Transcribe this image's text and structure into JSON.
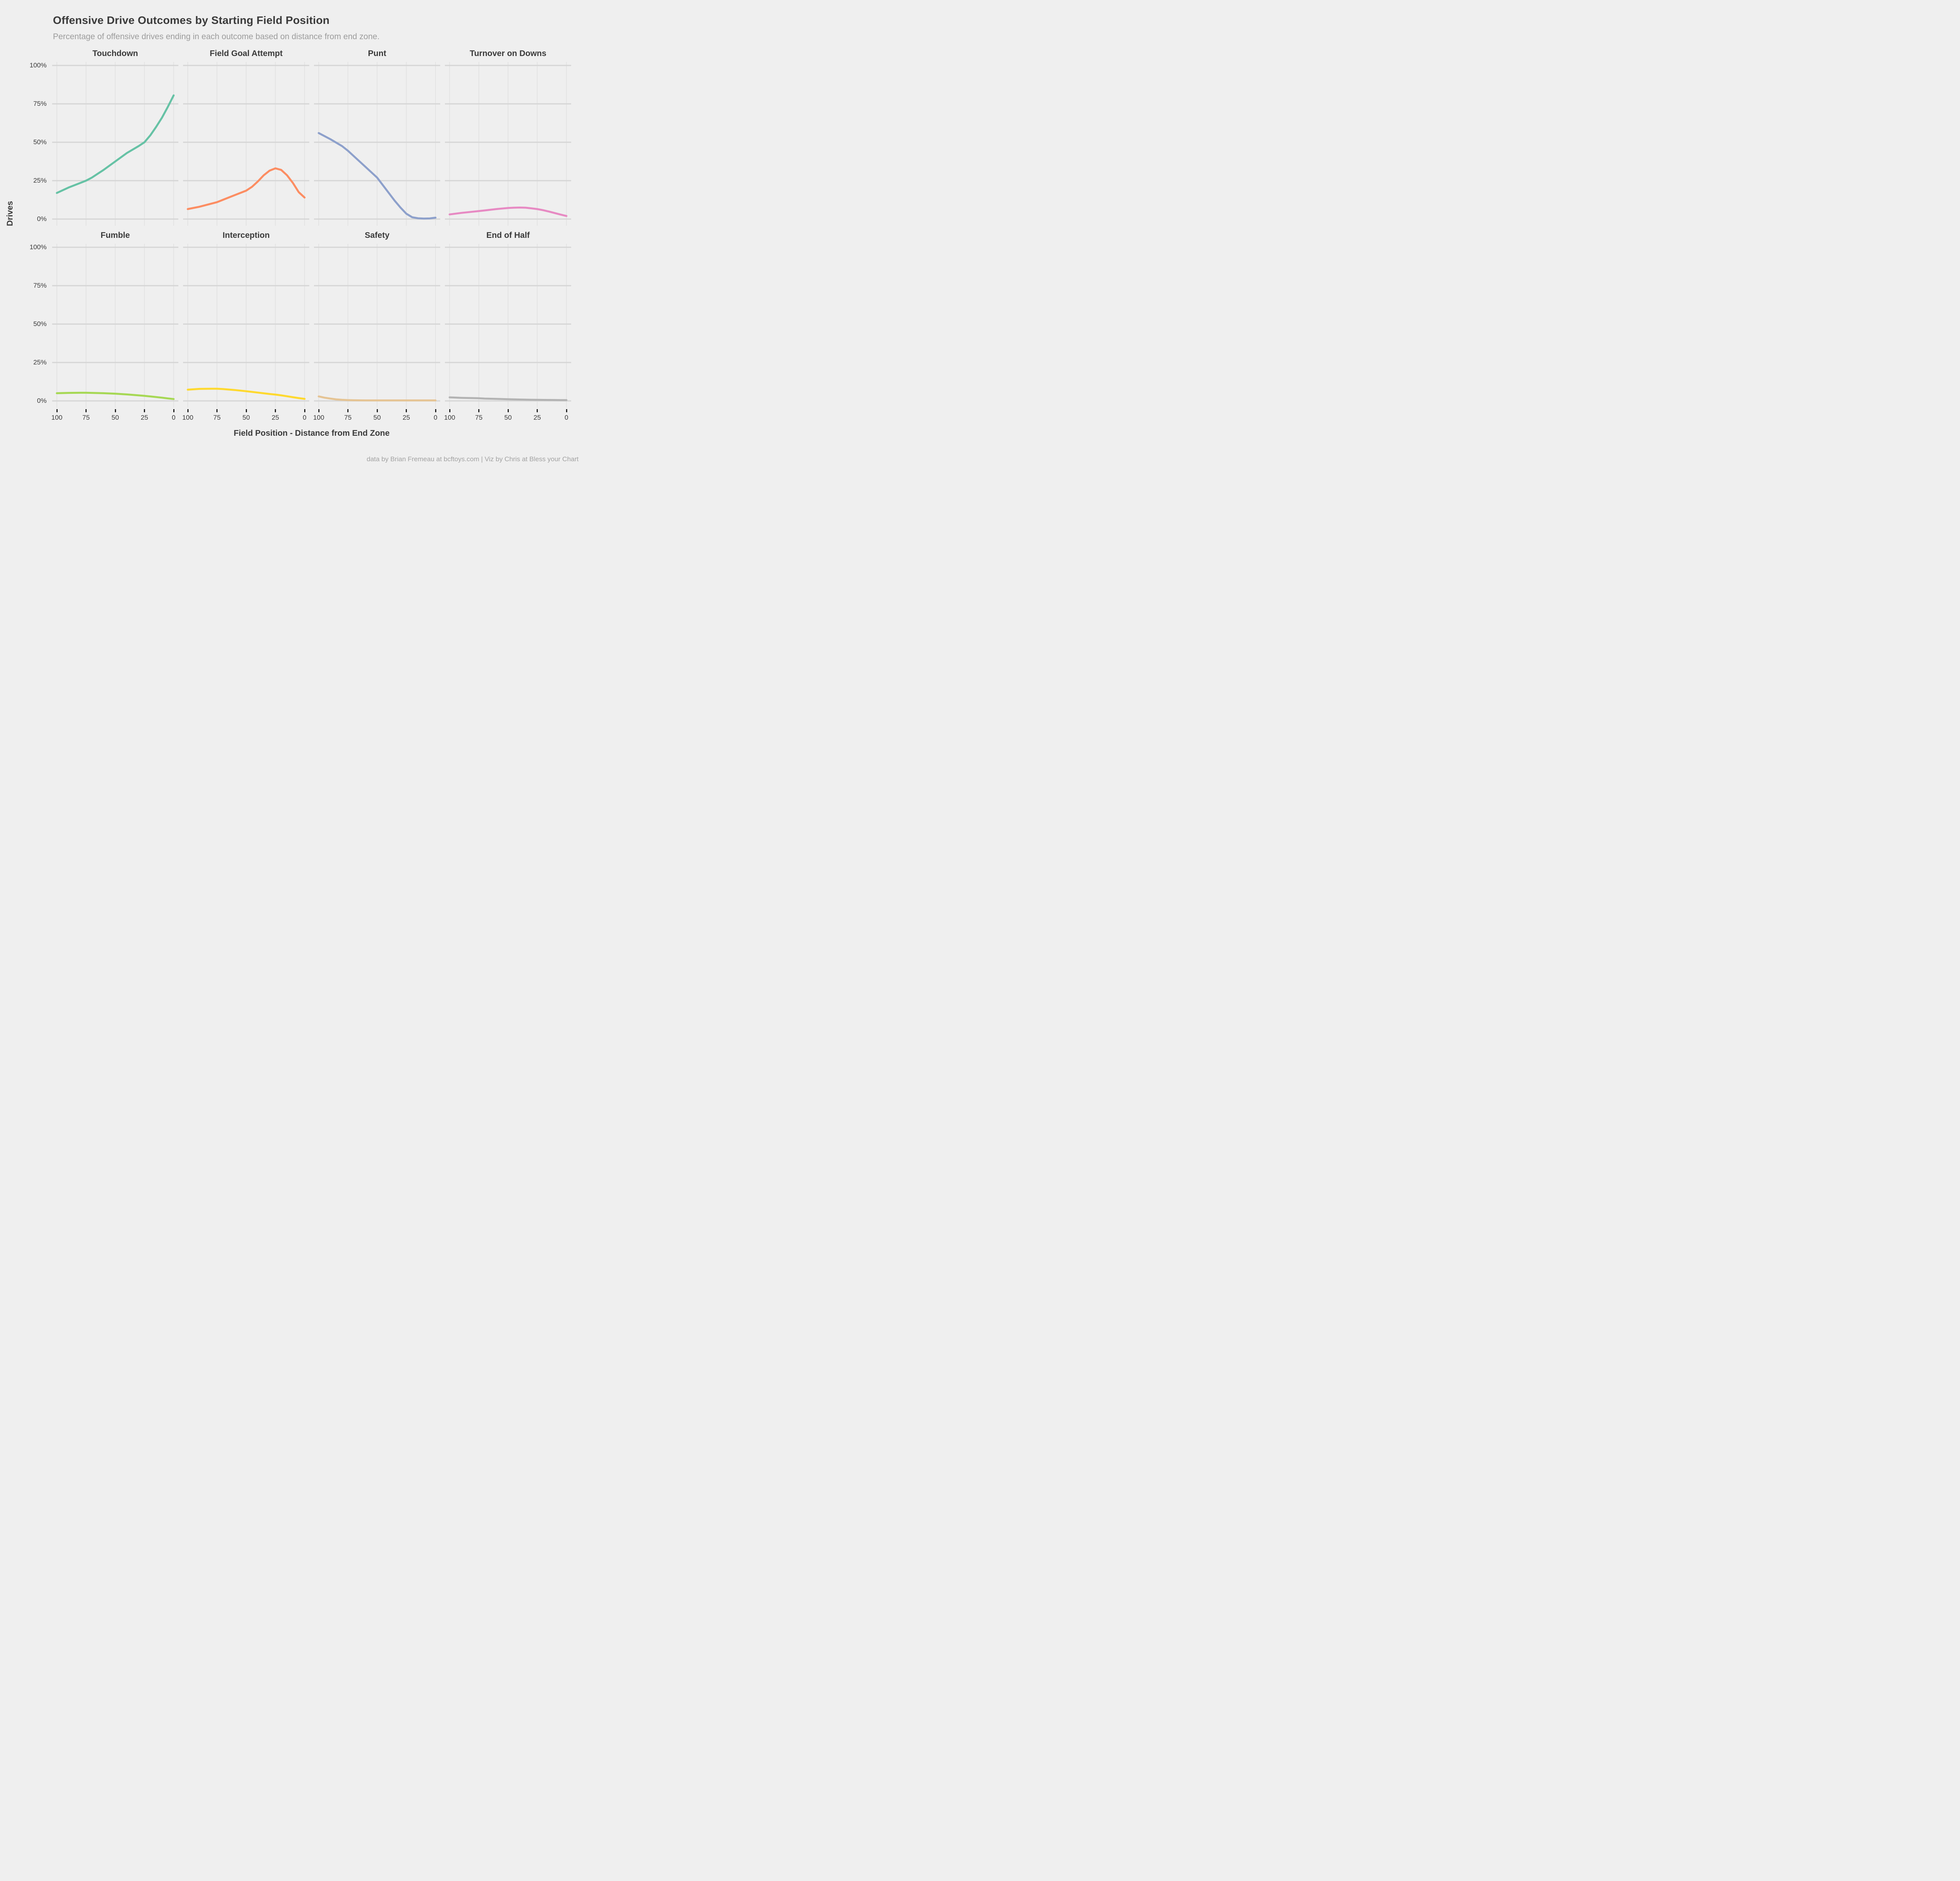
{
  "header": {
    "title": "Offensive Drive Outcomes by Starting Field Position",
    "subtitle": "Percentage of offensive drives ending in each outcome based on distance from end zone."
  },
  "footer": {
    "credit": "data by Brian Fremeau at bcftoys.com | Viz by Chris at Bless your Chart"
  },
  "colors": {
    "background": "#EFEFEF",
    "grid_major_horizontal": "#D5D5D5",
    "grid_vertical": "#E2E2E2",
    "text_dark": "#3A3A3A",
    "text_muted": "#9C9C9C",
    "axis_tick_mark": "#222222"
  },
  "chart_data": {
    "type": "line",
    "layout": "facet_grid_2x4",
    "title": "Offensive Drive Outcomes by Starting Field Position",
    "subtitle": "Percentage of offensive drives ending in each outcome based on distance from end zone.",
    "xlabel": "Field Position - Distance from End Zone",
    "ylabel": "Drives",
    "x_domain": [
      100,
      0
    ],
    "y_domain": [
      0,
      100
    ],
    "x_ticks": [
      100,
      75,
      50,
      25,
      0
    ],
    "y_ticks": [
      "100%",
      "75%",
      "50%",
      "25%",
      "0%"
    ],
    "y_tick_values": [
      100,
      75,
      50,
      25,
      0
    ],
    "grid": "major-only",
    "legend": "none",
    "facets": [
      {
        "label": "Touchdown",
        "color": "#66C2A5",
        "points": [
          [
            100,
            17
          ],
          [
            90,
            20.5
          ],
          [
            80,
            23.5
          ],
          [
            75,
            25
          ],
          [
            70,
            27
          ],
          [
            60,
            32
          ],
          [
            50,
            37.5
          ],
          [
            40,
            43
          ],
          [
            30,
            47.5
          ],
          [
            25,
            50
          ],
          [
            20,
            54.5
          ],
          [
            15,
            60
          ],
          [
            10,
            66
          ],
          [
            5,
            73
          ],
          [
            0,
            80.5
          ]
        ]
      },
      {
        "label": "Field Goal Attempt",
        "color": "#FC8D62",
        "points": [
          [
            100,
            6.5
          ],
          [
            90,
            8
          ],
          [
            80,
            10
          ],
          [
            75,
            11
          ],
          [
            70,
            12.5
          ],
          [
            60,
            15.5
          ],
          [
            50,
            18.5
          ],
          [
            45,
            21
          ],
          [
            40,
            24.5
          ],
          [
            35,
            28.5
          ],
          [
            30,
            31.5
          ],
          [
            25,
            33
          ],
          [
            20,
            32
          ],
          [
            15,
            28.5
          ],
          [
            10,
            23.5
          ],
          [
            5,
            17.5
          ],
          [
            0,
            14
          ]
        ]
      },
      {
        "label": "Punt",
        "color": "#8DA0CB",
        "points": [
          [
            100,
            56
          ],
          [
            90,
            52
          ],
          [
            80,
            47.5
          ],
          [
            75,
            44.5
          ],
          [
            70,
            41
          ],
          [
            60,
            34
          ],
          [
            50,
            27
          ],
          [
            40,
            17
          ],
          [
            35,
            12
          ],
          [
            30,
            7.5
          ],
          [
            25,
            3.5
          ],
          [
            20,
            1.2
          ],
          [
            15,
            0.5
          ],
          [
            10,
            0.3
          ],
          [
            5,
            0.4
          ],
          [
            0,
            0.9
          ]
        ]
      },
      {
        "label": "Turnover on Downs",
        "color": "#E78AC3",
        "points": [
          [
            100,
            3
          ],
          [
            90,
            4
          ],
          [
            80,
            4.8
          ],
          [
            75,
            5.2
          ],
          [
            70,
            5.6
          ],
          [
            60,
            6.5
          ],
          [
            50,
            7.2
          ],
          [
            45,
            7.4
          ],
          [
            40,
            7.5
          ],
          [
            35,
            7.4
          ],
          [
            30,
            7
          ],
          [
            25,
            6.5
          ],
          [
            20,
            5.8
          ],
          [
            15,
            4.9
          ],
          [
            10,
            3.9
          ],
          [
            5,
            2.9
          ],
          [
            0,
            2
          ]
        ]
      },
      {
        "label": "Fumble",
        "color": "#A6D854",
        "points": [
          [
            100,
            5
          ],
          [
            90,
            5.2
          ],
          [
            80,
            5.3
          ],
          [
            75,
            5.3
          ],
          [
            70,
            5.2
          ],
          [
            60,
            5
          ],
          [
            50,
            4.7
          ],
          [
            40,
            4.2
          ],
          [
            30,
            3.6
          ],
          [
            25,
            3.3
          ],
          [
            20,
            2.9
          ],
          [
            15,
            2.5
          ],
          [
            10,
            2.1
          ],
          [
            5,
            1.6
          ],
          [
            0,
            1.2
          ]
        ]
      },
      {
        "label": "Interception",
        "color": "#FFD92F",
        "points": [
          [
            100,
            7.3
          ],
          [
            90,
            7.8
          ],
          [
            80,
            7.9
          ],
          [
            75,
            7.9
          ],
          [
            70,
            7.7
          ],
          [
            60,
            7.1
          ],
          [
            50,
            6.3
          ],
          [
            40,
            5.4
          ],
          [
            30,
            4.5
          ],
          [
            25,
            4.1
          ],
          [
            20,
            3.6
          ],
          [
            15,
            3
          ],
          [
            10,
            2.4
          ],
          [
            5,
            1.8
          ],
          [
            0,
            1.3
          ]
        ]
      },
      {
        "label": "Safety",
        "color": "#E5C494",
        "points": [
          [
            100,
            2.9
          ],
          [
            95,
            2.1
          ],
          [
            90,
            1.5
          ],
          [
            85,
            1
          ],
          [
            80,
            0.7
          ],
          [
            75,
            0.5
          ],
          [
            70,
            0.4
          ],
          [
            60,
            0.3
          ],
          [
            50,
            0.3
          ],
          [
            40,
            0.3
          ],
          [
            30,
            0.3
          ],
          [
            20,
            0.3
          ],
          [
            10,
            0.3
          ],
          [
            0,
            0.3
          ]
        ]
      },
      {
        "label": "End of Half",
        "color": "#B3B3B3",
        "points": [
          [
            100,
            2.3
          ],
          [
            90,
            2
          ],
          [
            80,
            1.8
          ],
          [
            75,
            1.7
          ],
          [
            70,
            1.5
          ],
          [
            60,
            1.3
          ],
          [
            50,
            1.1
          ],
          [
            40,
            0.9
          ],
          [
            30,
            0.75
          ],
          [
            25,
            0.7
          ],
          [
            20,
            0.65
          ],
          [
            15,
            0.6
          ],
          [
            10,
            0.55
          ],
          [
            5,
            0.5
          ],
          [
            0,
            0.5
          ]
        ]
      }
    ]
  }
}
